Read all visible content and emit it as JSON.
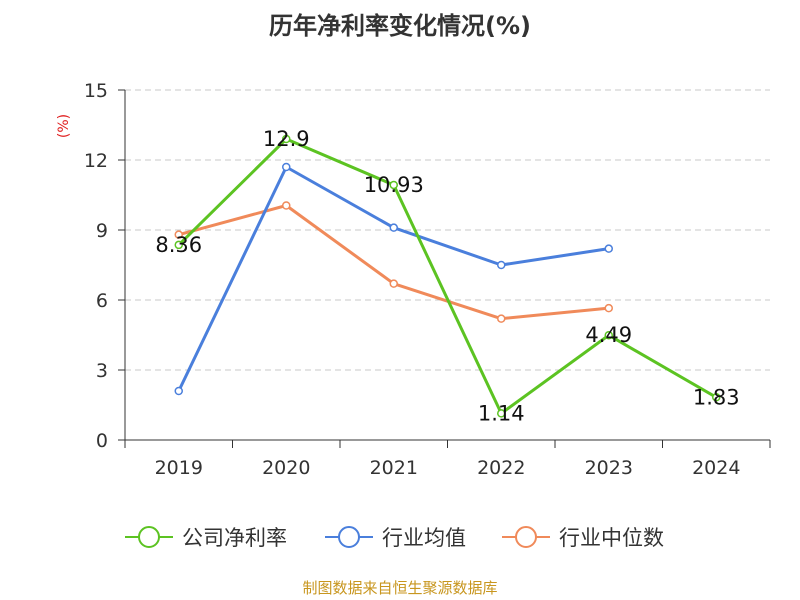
{
  "chart_data": {
    "type": "line",
    "title": "历年净利率变化情况(%)",
    "ylabel": "(%)",
    "xlabel": "",
    "categories": [
      "2019",
      "2020",
      "2021",
      "2022",
      "2023",
      "2024"
    ],
    "ylim": [
      0,
      15
    ],
    "yticks": [
      "0",
      "3",
      "6",
      "9",
      "12",
      "15"
    ],
    "grid": true,
    "legend_position": "bottom",
    "series": [
      {
        "name": "公司净利率",
        "color": "#5cc322",
        "values": [
          8.36,
          12.9,
          10.93,
          1.14,
          4.49,
          1.83
        ],
        "labels": [
          "8.36",
          "12.9",
          "10.93",
          "1.14",
          "4.49",
          "1.83"
        ]
      },
      {
        "name": "行业均值",
        "color": "#4a7fdc",
        "values": [
          2.1,
          11.7,
          9.1,
          7.5,
          8.2,
          null
        ]
      },
      {
        "name": "行业中位数",
        "color": "#f08a5a",
        "values": [
          8.8,
          10.05,
          6.7,
          5.2,
          5.65,
          null
        ]
      }
    ],
    "source": "制图数据来自恒生聚源数据库"
  }
}
